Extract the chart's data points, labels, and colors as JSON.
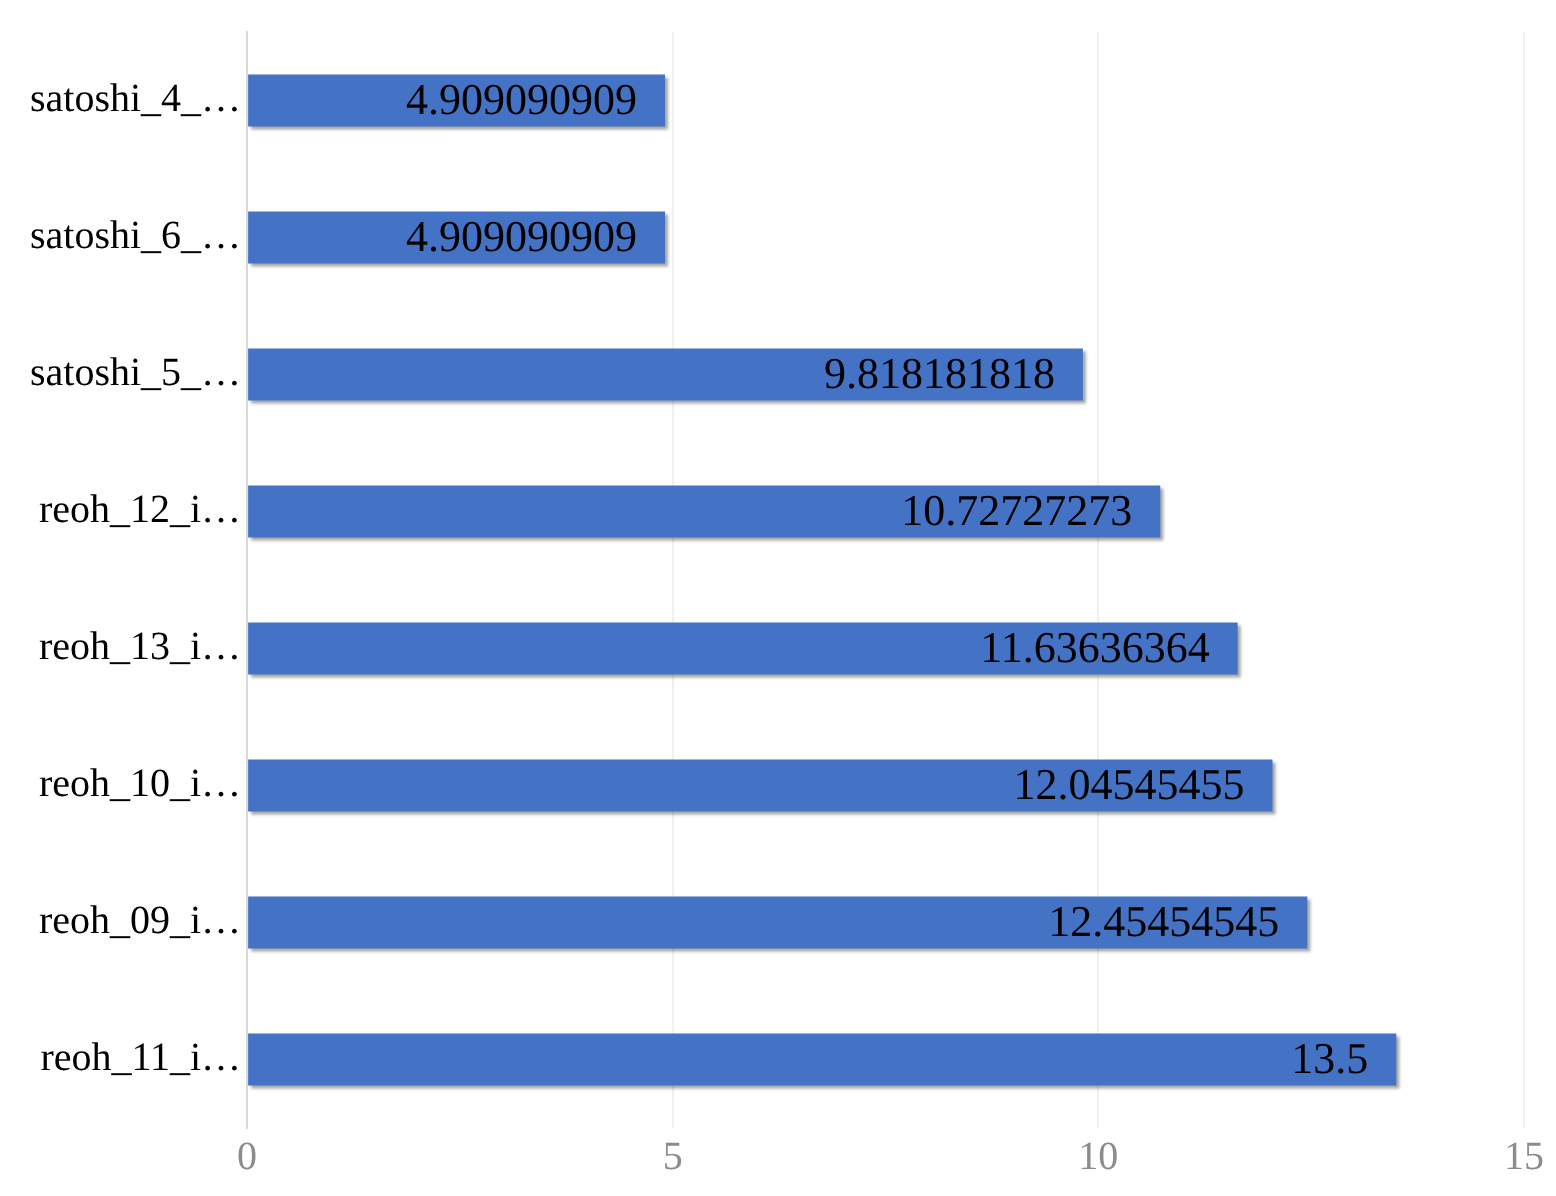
{
  "chart_data": {
    "type": "bar",
    "orientation": "horizontal",
    "categories": [
      "satoshi_4_…",
      "satoshi_6_…",
      "satoshi_5_…",
      "reoh_12_i…",
      "reoh_13_i…",
      "reoh_10_i…",
      "reoh_09_i…",
      "reoh_11_i…"
    ],
    "values": [
      4.909090909,
      4.909090909,
      9.818181818,
      10.72727273,
      11.63636364,
      12.04545455,
      12.45454545,
      13.5
    ],
    "color": "#4472c4",
    "xlim": [
      0,
      15
    ],
    "xticks": [
      0,
      5,
      10,
      15
    ],
    "grid": "x",
    "data_labels": true
  }
}
